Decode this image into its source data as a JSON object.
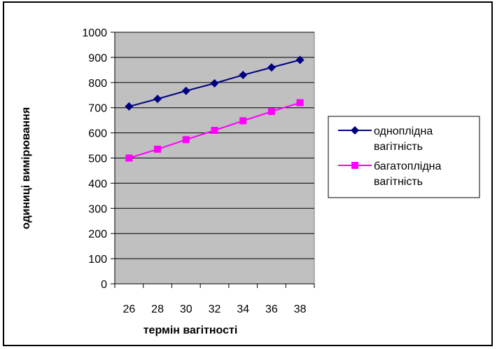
{
  "chart_data": {
    "type": "line",
    "title": "",
    "xlabel": "термін вагітності",
    "ylabel": "одиниці вимірювання",
    "x_tick_labels": [
      "26",
      "28",
      "30",
      "32",
      "34",
      "36",
      "38"
    ],
    "x": [
      27,
      29,
      31,
      33,
      35,
      37,
      39
    ],
    "xlim": [
      26,
      40
    ],
    "ylim": [
      0,
      1000
    ],
    "y_ticks": [
      0,
      100,
      200,
      300,
      400,
      500,
      600,
      700,
      800,
      900,
      1000
    ],
    "grid": "horizontal",
    "plot_background": "#c0c0c0",
    "legend_position": "right",
    "series": [
      {
        "name": "одноплідна вагітність",
        "legend_lines": [
          "одноплідна",
          "вагітність"
        ],
        "values": [
          705,
          735,
          767,
          797,
          830,
          860,
          890
        ],
        "color": "#000080",
        "marker": "diamond"
      },
      {
        "name": "багатоплідна вагітність",
        "legend_lines": [
          "багатоплідна",
          "вагітність"
        ],
        "values": [
          500,
          535,
          573,
          610,
          648,
          685,
          720
        ],
        "color": "#ff00ff",
        "marker": "square"
      }
    ]
  }
}
